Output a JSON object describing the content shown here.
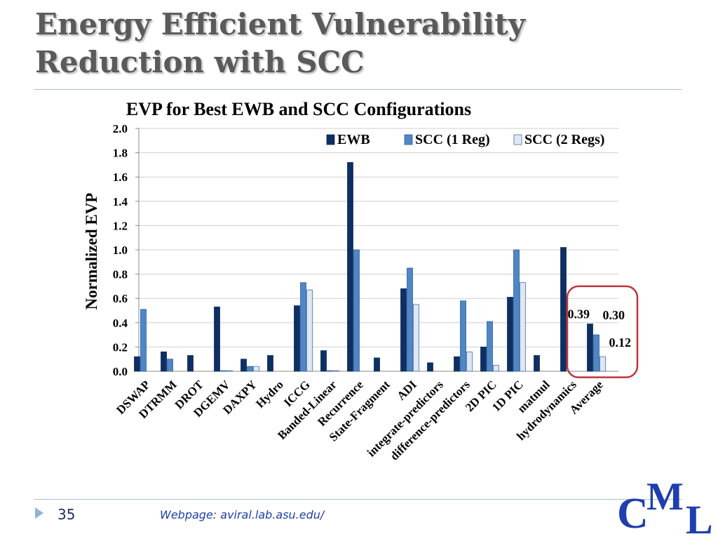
{
  "slide": {
    "title_line1": "Energy Efficient Vulnerability",
    "title_line2": "Reduction with SCC",
    "slide_number": "35",
    "footer_link": "Webpage: aviral.lab.asu.edu/",
    "logo_letters": [
      "C",
      "M",
      "L"
    ]
  },
  "colors": {
    "ewb": "#0f2f62",
    "scc1": "#4f86c6",
    "scc2": "#dce8f6",
    "highlight": "#c0343a",
    "title_text": "#5a5a5a",
    "logo": "#1f3fb0"
  },
  "chart_data": {
    "type": "bar",
    "title": "EVP for Best EWB and SCC Configurations",
    "xlabel": "",
    "ylabel": "Normalized EVP",
    "ylim": [
      0,
      2.0
    ],
    "yticks": [
      "0.0",
      "0.2",
      "0.4",
      "0.6",
      "0.8",
      "1.0",
      "1.2",
      "1.4",
      "1.6",
      "1.8",
      "2.0"
    ],
    "grid": true,
    "legend_position": "top-right",
    "categories": [
      "DSWAP",
      "DTRMM",
      "DROT",
      "DGEMV",
      "DAXPY",
      "Hydro",
      "ICCG",
      "Banded-Linear",
      "Recurrence",
      "State-Fragment",
      "ADI",
      "integrate-predictors",
      "difference-predictors",
      "2D PIC",
      "1D PIC",
      "matmul",
      "hydrodynamics",
      "Average"
    ],
    "series": [
      {
        "name": "EWB",
        "values": [
          0.12,
          0.16,
          0.13,
          0.53,
          0.1,
          0.13,
          0.54,
          0.17,
          1.72,
          0.11,
          0.68,
          0.07,
          0.12,
          0.2,
          0.61,
          0.13,
          1.02,
          0.39
        ]
      },
      {
        "name": "SCC (1 Reg)",
        "values": [
          0.51,
          0.1,
          0,
          0.005,
          0.04,
          0,
          0.73,
          0.005,
          1.0,
          0,
          0.85,
          0,
          0.58,
          0.41,
          1.0,
          0,
          0,
          0.3
        ]
      },
      {
        "name": "SCC (2 Regs)",
        "values": [
          0,
          0,
          0,
          0.005,
          0.04,
          0,
          0.67,
          0.005,
          0,
          0,
          0.55,
          0,
          0.16,
          0.05,
          0.73,
          0,
          0,
          0.12
        ]
      }
    ],
    "annotations": [
      {
        "label": "0.39",
        "series": "EWB",
        "category": "Average"
      },
      {
        "label": "0.30",
        "series": "SCC (1 Reg)",
        "category": "Average"
      },
      {
        "label": "0.12",
        "series": "SCC (2 Regs)",
        "category": "Average"
      }
    ],
    "highlight": "Average"
  }
}
